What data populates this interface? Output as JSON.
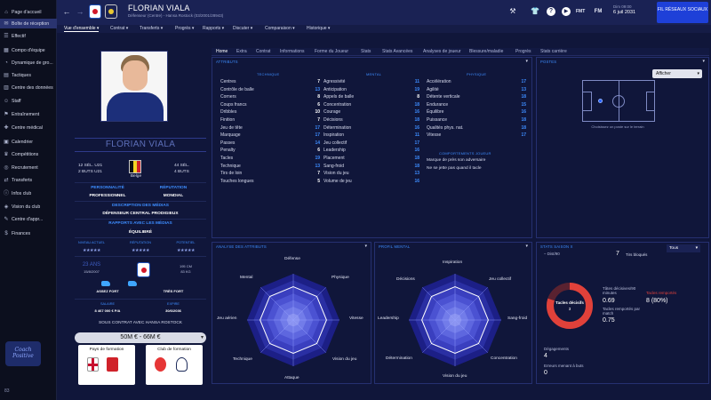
{
  "sidebar": {
    "items": [
      {
        "label": "Page d'accueil",
        "icon": "home-icon"
      },
      {
        "label": "Boîte de réception",
        "icon": "inbox-icon"
      },
      {
        "label": "Effectif",
        "icon": "squad-icon"
      },
      {
        "label": "Compo d'équipe",
        "icon": "lineup-icon"
      },
      {
        "label": "Dynamique de gro...",
        "icon": "dynamics-icon"
      },
      {
        "label": "Tactiques",
        "icon": "tactics-icon"
      },
      {
        "label": "Centre des données",
        "icon": "data-icon"
      },
      {
        "label": "Staff",
        "icon": "staff-icon"
      },
      {
        "label": "Entraînement",
        "icon": "training-icon"
      },
      {
        "label": "Centre médical",
        "icon": "medical-icon"
      },
      {
        "label": "Calendrier",
        "icon": "calendar-icon"
      },
      {
        "label": "Compétitions",
        "icon": "trophy-icon"
      },
      {
        "label": "Recrutement",
        "icon": "scouting-icon"
      },
      {
        "label": "Transferts",
        "icon": "transfers-icon"
      },
      {
        "label": "Infos club",
        "icon": "club-info-icon"
      },
      {
        "label": "Vision du club",
        "icon": "club-vision-icon"
      },
      {
        "label": "Centre d'appr...",
        "icon": "academy-icon"
      },
      {
        "label": "Finances",
        "icon": "finances-icon"
      }
    ],
    "logo_text": "Coach Positive",
    "footer_number": "83"
  },
  "topbar": {
    "player_name": "FLORIAN VIALA",
    "subtitle": "Défenseur (Centre) - Hansa Rostock (03/2001/28943)",
    "date_day": "Dim 09:00",
    "date": "6 juil 2031",
    "fil_button": "FIL RÉSEAUX SOCIAUX",
    "icons": [
      "hammer-icon",
      "shirt-icon",
      "help-icon",
      "youtube-icon",
      "fmt-icon",
      "fm-icon"
    ],
    "fmt_label": "FMT",
    "fm_label": "FM"
  },
  "menu": [
    {
      "label": "Vue d'ensemble ▾",
      "active": true
    },
    {
      "label": "Contrat ▾"
    },
    {
      "label": "Transferts ▾"
    },
    {
      "label": "Progrès ▾"
    },
    {
      "label": "Rapports ▾"
    },
    {
      "label": "Discuter ▾"
    },
    {
      "label": "Comparaison ▾"
    },
    {
      "label": "Historique ▾"
    }
  ],
  "player": {
    "name": "FLORIAN VIALA",
    "sel_left": "12 SÉL. U21",
    "buts_left": "2 BUTS U21",
    "nationality": "Belge",
    "sel_right": "44 SÉL.",
    "buts_right": "4 BUTS",
    "personality_label": "PERSONNALITÉ",
    "personality": "PROFESSIONNEL",
    "reputation_label": "RÉPUTATION",
    "reputation": "MONDIAL",
    "media_desc_label": "DESCRIPTION DES MÉDIAS",
    "media_desc": "DÉFENSEUR CENTRAL PRODIGIEUX",
    "media_rel_label": "RAPPORTS AVEC LES MÉDIAS",
    "media_rel": "ÉQUILIBRÉ",
    "small_headers": [
      "NIVEAU ACTUEL",
      "RÉPUTATION",
      "POTENTIEL"
    ],
    "stars": [
      "★★★★★",
      "★★★★★",
      "★★★★★"
    ],
    "age": "23 ANS",
    "dob": "15/8/2007",
    "height": "195 CM",
    "weight": "83 KG",
    "left_foot": "ASSEZ FORT",
    "right_foot": "TRÈS FORT",
    "salary_label": "SALAIRE",
    "salary": "8 467 000 € P/A",
    "expiry_label": "EXPIRE",
    "expiry": "30/6/2036",
    "contract": "SOUS CONTRAT AVEC HANSA ROSTOCK",
    "value": "50M € - 66M €",
    "formation_country_label": "Pays de formation",
    "formation_club_label": "Club de formation"
  },
  "tabs": [
    {
      "label": "Home",
      "active": true
    },
    {
      "label": "Extra"
    },
    {
      "label": "Contrat"
    },
    {
      "label": "Informations"
    },
    {
      "label": "Forme du Joueur"
    },
    {
      "label": "Stats"
    },
    {
      "label": "Stats Avancées"
    },
    {
      "label": "Analyses de joueur"
    },
    {
      "label": "Blessure/maladie"
    },
    {
      "label": "Progrès"
    },
    {
      "label": "Stats carrière"
    }
  ],
  "attributes": {
    "title": "ATTRIBUTS",
    "technique_header": "TECHNIQUE",
    "mental_header": "MENTAL",
    "physique_header": "PHYSIQUE",
    "traits_header": "COMPORTEMENTS JOUEUR",
    "technique": [
      {
        "name": "Centres",
        "value": "7",
        "style": "white"
      },
      {
        "name": "Contrôle de balle",
        "value": "13",
        "style": "blue"
      },
      {
        "name": "Corners",
        "value": "8",
        "style": "white"
      },
      {
        "name": "Coups francs",
        "value": "6",
        "style": "white"
      },
      {
        "name": "Dribbles",
        "value": "10",
        "style": "white"
      },
      {
        "name": "Finition",
        "value": "7",
        "style": "white"
      },
      {
        "name": "Jeu de tête",
        "value": "17",
        "style": "blue"
      },
      {
        "name": "Marquage",
        "value": "17",
        "style": "blue"
      },
      {
        "name": "Passes",
        "value": "14",
        "style": "blue"
      },
      {
        "name": "Penalty",
        "value": "6",
        "style": "white"
      },
      {
        "name": "Tacles",
        "value": "19",
        "style": "blue"
      },
      {
        "name": "Technique",
        "value": "13",
        "style": "blue"
      },
      {
        "name": "Tirs de loin",
        "value": "7",
        "style": "white"
      },
      {
        "name": "Touches longues",
        "value": "5",
        "style": "white"
      }
    ],
    "mental": [
      {
        "name": "Agressivité",
        "value": "11",
        "style": "blue"
      },
      {
        "name": "Anticipation",
        "value": "19",
        "style": "blue"
      },
      {
        "name": "Appels de balle",
        "value": "8",
        "style": "white"
      },
      {
        "name": "Concentration",
        "value": "18",
        "style": "blue"
      },
      {
        "name": "Courage",
        "value": "16",
        "style": "blue"
      },
      {
        "name": "Décisions",
        "value": "18",
        "style": "blue"
      },
      {
        "name": "Détermination",
        "value": "16",
        "style": "blue"
      },
      {
        "name": "Inspiration",
        "value": "11",
        "style": "blue"
      },
      {
        "name": "Jeu collectif",
        "value": "17",
        "style": "blue"
      },
      {
        "name": "Leadership",
        "value": "16",
        "style": "blue"
      },
      {
        "name": "Placement",
        "value": "18",
        "style": "blue"
      },
      {
        "name": "Sang-froid",
        "value": "18",
        "style": "blue"
      },
      {
        "name": "Vision du jeu",
        "value": "13",
        "style": "blue"
      },
      {
        "name": "Volume de jeu",
        "value": "16",
        "style": "blue"
      }
    ],
    "physique": [
      {
        "name": "Accélération",
        "value": "17",
        "style": "blue"
      },
      {
        "name": "Agilité",
        "value": "13",
        "style": "blue"
      },
      {
        "name": "Détente verticale",
        "value": "18",
        "style": "blue"
      },
      {
        "name": "Endurance",
        "value": "15",
        "style": "blue"
      },
      {
        "name": "Équilibre",
        "value": "16",
        "style": "blue"
      },
      {
        "name": "Puissance",
        "value": "18",
        "style": "blue"
      },
      {
        "name": "Qualités phys. nat.",
        "value": "18",
        "style": "blue"
      },
      {
        "name": "Vitesse",
        "value": "17",
        "style": "blue"
      }
    ],
    "traits": [
      "Marque de près son adversaire",
      "Ne se jette pas quand il tacle"
    ]
  },
  "postes": {
    "title": "POSTES",
    "afficher": "Afficher",
    "hint": "Choisissez un poste sur le terrain"
  },
  "analyse": {
    "title": "ANALYSE DES ATTRIBUTS",
    "labels": [
      "Défense",
      "Physique",
      "Vitesse",
      "Vision du jeu",
      "Attaque",
      "Technique",
      "Jeu aérien",
      "Mental"
    ]
  },
  "profil": {
    "title": "PROFIL MENTAL",
    "labels": [
      "Inspiration",
      "Jeu collectif",
      "Sang-froid",
      "Concentration",
      "Vision du jeu",
      "Détermination",
      "Leadership",
      "Décisions"
    ]
  },
  "stats": {
    "title": "STATS SAISON X",
    "filter": "Tous",
    "dist_label": "Dist/90",
    "blocked_value": "7",
    "blocked_label": "Tirs bloqués",
    "donut_label": "Tacles décisifs",
    "donut_value": "3",
    "tackles_won_pct": 0.8,
    "rows": [
      {
        "label": "Tâtes décisives/90 minutes",
        "value": "0.69"
      },
      {
        "label": "Tacles remportés par match",
        "value": "0.75"
      },
      {
        "label": "Tacles remportés",
        "value": "8 (80%)"
      },
      {
        "label": "Dégagements",
        "value": "4"
      },
      {
        "label": "Erreurs menant à buts",
        "value": "0"
      }
    ]
  },
  "colors": {
    "accent": "#3d8dff",
    "panel_bg": "#10163a",
    "topbar": "#1a2254",
    "button": "#1e40d8",
    "donut": "#e0413a"
  }
}
